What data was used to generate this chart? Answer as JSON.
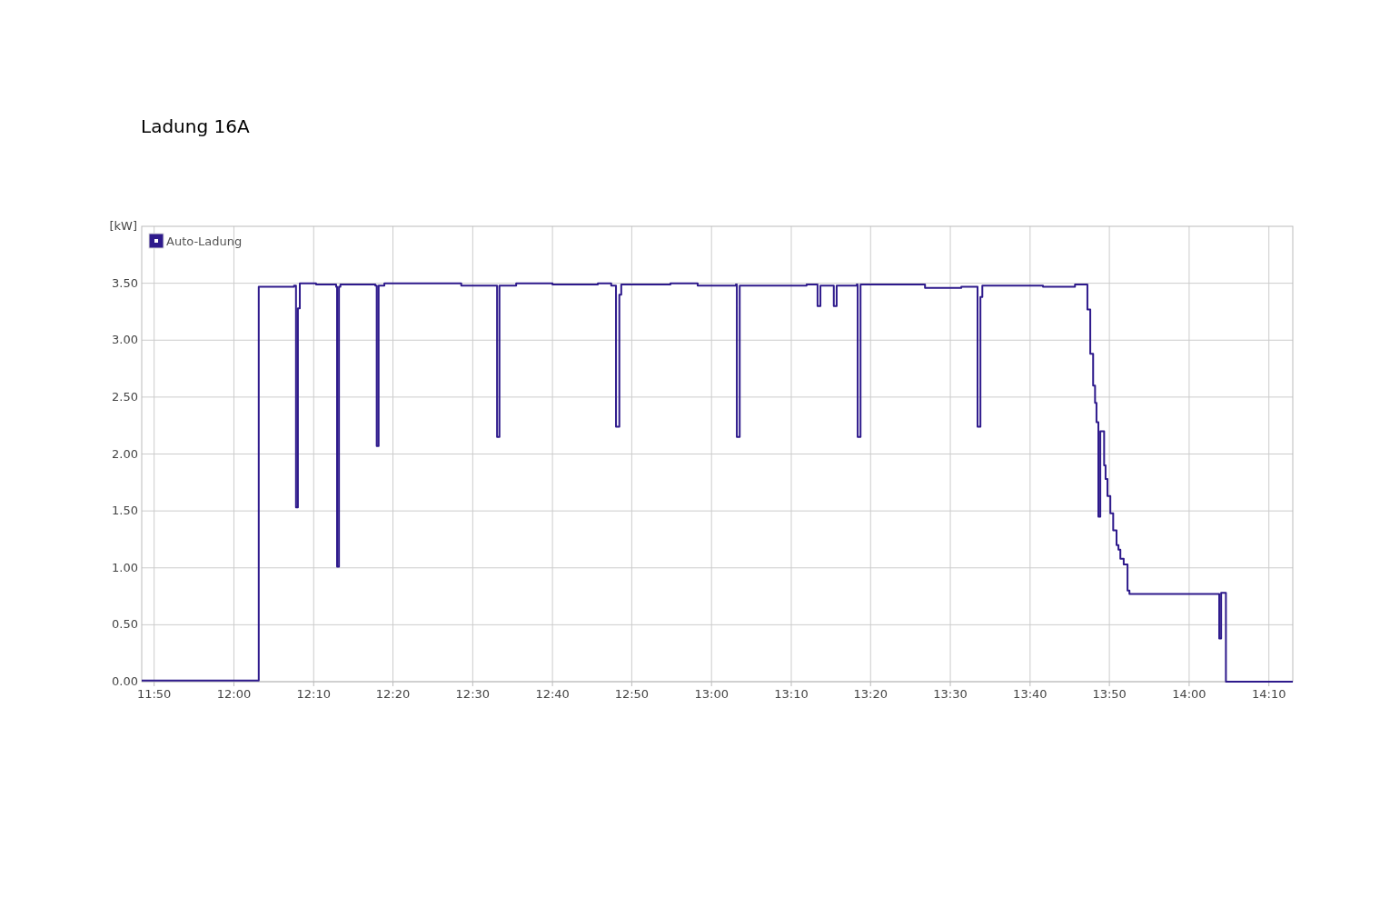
{
  "chart_data": {
    "type": "step",
    "title": "Ladung 16A",
    "ylabel": "[kW]",
    "xlim": [
      11.807,
      14.217
    ],
    "ylim": [
      0,
      4.0
    ],
    "xticks": [
      {
        "value": 11.833,
        "label": "11:50"
      },
      {
        "value": 12,
        "label": "12:00"
      },
      {
        "value": 12.167,
        "label": "12:10"
      },
      {
        "value": 12.333,
        "label": "12:20"
      },
      {
        "value": 12.5,
        "label": "12:30"
      },
      {
        "value": 12.667,
        "label": "12:40"
      },
      {
        "value": 12.833,
        "label": "12:50"
      },
      {
        "value": 13,
        "label": "13:00"
      },
      {
        "value": 13.167,
        "label": "13:10"
      },
      {
        "value": 13.333,
        "label": "13:20"
      },
      {
        "value": 13.5,
        "label": "13:30"
      },
      {
        "value": 13.667,
        "label": "13:40"
      },
      {
        "value": 13.833,
        "label": "13:50"
      },
      {
        "value": 14,
        "label": "14:00"
      },
      {
        "value": 14.167,
        "label": "14:10"
      }
    ],
    "yticks": [
      {
        "value": 0,
        "label": "0.00"
      },
      {
        "value": 0.5,
        "label": "0.50"
      },
      {
        "value": 1,
        "label": "1.00"
      },
      {
        "value": 1.5,
        "label": "1.50"
      },
      {
        "value": 2,
        "label": "2.00"
      },
      {
        "value": 2.5,
        "label": "2.50"
      },
      {
        "value": 3,
        "label": "3.00"
      },
      {
        "value": 3.5,
        "label": "3.50"
      }
    ],
    "grid": true,
    "legend": "top left",
    "x": [
      11.807,
      12.052,
      12.126,
      12.13,
      12.134,
      12.138,
      12.172,
      12.214,
      12.216,
      12.22,
      12.223,
      12.296,
      12.299,
      12.303,
      12.315,
      12.391,
      12.476,
      12.549,
      12.551,
      12.556,
      12.591,
      12.667,
      12.762,
      12.79,
      12.8,
      12.807,
      12.811,
      12.914,
      12.971,
      13.051,
      13.053,
      13.059,
      13.142,
      13.199,
      13.222,
      13.228,
      13.256,
      13.262,
      13.304,
      13.306,
      13.312,
      13.447,
      13.523,
      13.555,
      13.557,
      13.563,
      13.567,
      13.675,
      13.694,
      13.761,
      13.787,
      13.793,
      13.799,
      13.803,
      13.806,
      13.81,
      13.814,
      13.822,
      13.825,
      13.829,
      13.835,
      13.841,
      13.848,
      13.852,
      13.856,
      13.863,
      13.871,
      13.875,
      14.061,
      14.063,
      14.067,
      14.077,
      14.217
    ],
    "series": [
      {
        "name": "Auto-Ladung",
        "color": "#2e1a8c",
        "values": [
          0.01,
          3.47,
          3.48,
          1.53,
          3.28,
          3.5,
          3.49,
          3.47,
          1.01,
          3.47,
          3.49,
          3.48,
          2.07,
          3.48,
          3.5,
          3.5,
          3.48,
          3.48,
          2.15,
          3.48,
          3.5,
          3.49,
          3.5,
          3.48,
          2.24,
          3.4,
          3.49,
          3.5,
          3.48,
          3.49,
          2.15,
          3.48,
          3.48,
          3.49,
          3.3,
          3.48,
          3.3,
          3.48,
          3.49,
          2.15,
          3.49,
          3.46,
          3.47,
          3.47,
          2.24,
          3.38,
          3.48,
          3.48,
          3.47,
          3.49,
          3.27,
          2.88,
          2.6,
          2.45,
          2.28,
          1.45,
          2.2,
          1.9,
          1.78,
          1.63,
          1.48,
          1.33,
          1.2,
          1.16,
          1.08,
          1.03,
          0.8,
          0.77,
          0.77,
          0.38,
          0.78,
          0.0,
          0.0
        ]
      }
    ]
  }
}
